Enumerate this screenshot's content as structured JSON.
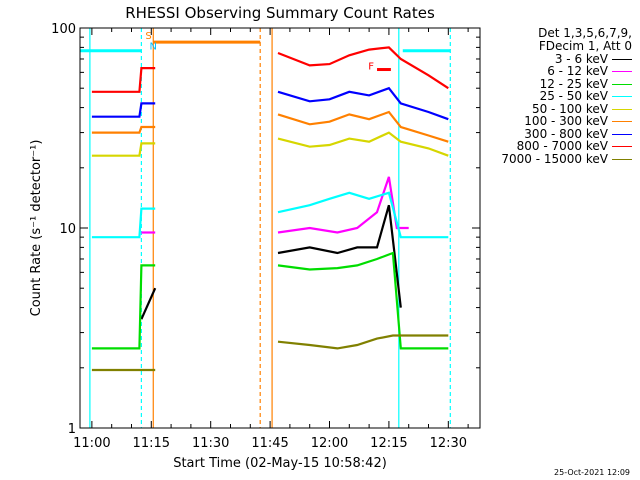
{
  "chart_data": {
    "type": "line",
    "title": "RHESSI Observing Summary Count Rates",
    "xlabel": "Start Time (02-May-15 10:58:42)",
    "ylabel": "Count Rate (s⁻¹ detector⁻¹)",
    "y_scale": "log",
    "ylim": [
      1,
      100
    ],
    "y_ticks": [
      "1",
      "10",
      "100"
    ],
    "xlim_minutes": [
      -3,
      98
    ],
    "x_ticks": [
      {
        "label": "11:00",
        "m": 0
      },
      {
        "label": "11:15",
        "m": 15
      },
      {
        "label": "11:30",
        "m": 30
      },
      {
        "label": "11:45",
        "m": 45
      },
      {
        "label": "12:00",
        "m": 60
      },
      {
        "label": "12:15",
        "m": 75
      },
      {
        "label": "12:30",
        "m": 90
      }
    ],
    "legend_header": [
      "Det 1,3,5,6,7,9,",
      "FDecim 1, Att 0"
    ],
    "series": [
      {
        "name": "3 - 6 keV",
        "color": "#000000",
        "x": [
          12.5,
          16,
          47,
          55,
          62,
          67,
          72,
          75,
          78
        ],
        "y": [
          3.5,
          5,
          7.5,
          8,
          7.5,
          8,
          8,
          13,
          4
        ]
      },
      {
        "name": "6 - 12 keV",
        "color": "#ff00ff",
        "x": [
          12.5,
          16,
          47,
          55,
          62,
          67,
          72,
          75,
          77,
          80
        ],
        "y": [
          9.5,
          9.5,
          9.5,
          10,
          9.5,
          10,
          12,
          18,
          10,
          10
        ]
      },
      {
        "name": "12 - 25 keV",
        "color": "#00dd00",
        "x": [
          0,
          12,
          12.5,
          16,
          47,
          55,
          62,
          67,
          72,
          76,
          78,
          85,
          90
        ],
        "y": [
          2.5,
          2.5,
          6.5,
          6.5,
          6.5,
          6.2,
          6.3,
          6.5,
          7,
          7.5,
          2.5,
          2.5,
          2.5
        ]
      },
      {
        "name": "25 - 50 keV",
        "color": "#00ffff",
        "x": [
          0,
          12,
          12.5,
          16,
          47,
          55,
          60,
          65,
          70,
          75,
          78,
          85,
          90
        ],
        "y": [
          9,
          9,
          12.5,
          12.5,
          12,
          13,
          14,
          15,
          14,
          15,
          9,
          9,
          9
        ]
      },
      {
        "name": "50 - 100 keV",
        "color": "#d6d600",
        "x": [
          0,
          12,
          12.5,
          16,
          47,
          55,
          60,
          65,
          70,
          75,
          78,
          85,
          90
        ],
        "y": [
          23,
          23,
          26.5,
          26.5,
          28,
          25.5,
          26,
          28,
          27,
          30,
          27,
          25,
          23
        ]
      },
      {
        "name": "100 - 300 keV",
        "color": "#ff8000",
        "x": [
          0,
          12,
          12.5,
          16,
          47,
          55,
          60,
          65,
          70,
          75,
          78,
          85,
          90
        ],
        "y": [
          30,
          30,
          32,
          32,
          37,
          33,
          34,
          37,
          35,
          38,
          32,
          29,
          27
        ]
      },
      {
        "name": "300 - 800 keV",
        "color": "#0000ff",
        "x": [
          0,
          12,
          12.5,
          16,
          47,
          55,
          60,
          65,
          70,
          75,
          78,
          85,
          90
        ],
        "y": [
          36,
          36,
          42,
          42,
          48,
          43,
          44,
          48,
          46,
          50,
          42,
          38,
          35
        ]
      },
      {
        "name": "800 - 7000 keV",
        "color": "#ff0000",
        "x": [
          0,
          12,
          12.5,
          16,
          47,
          55,
          60,
          65,
          70,
          75,
          78,
          85,
          90
        ],
        "y": [
          48,
          48,
          63,
          63,
          75,
          65,
          66,
          73,
          78,
          80,
          70,
          58,
          50
        ]
      },
      {
        "name": "7000 - 15000 keV",
        "color": "#808000",
        "x": [
          0,
          12,
          16,
          47,
          55,
          62,
          67,
          72,
          76,
          78,
          85,
          90
        ],
        "y": [
          1.95,
          1.95,
          1.95,
          2.7,
          2.6,
          2.5,
          2.6,
          2.8,
          2.9,
          2.9,
          2.9,
          2.9
        ]
      }
    ],
    "vertical_markers": [
      {
        "m": -0.5,
        "color": "#00ffff",
        "style": "solid"
      },
      {
        "m": 12.5,
        "color": "#00ffff",
        "style": "dashed"
      },
      {
        "m": 15.5,
        "color": "#ff8000",
        "style": "solid"
      },
      {
        "m": 42.5,
        "color": "#ff8000",
        "style": "dashed"
      },
      {
        "m": 45.5,
        "color": "#ff8000",
        "style": "solid"
      },
      {
        "m": 77.5,
        "color": "#00ffff",
        "style": "solid"
      },
      {
        "m": 90.5,
        "color": "#00ffff",
        "style": "dashed"
      }
    ],
    "annotation_bars": [
      {
        "x0": -3,
        "x1": 12.5,
        "color": "#00ffff",
        "y": 77
      },
      {
        "x0": 15.5,
        "x1": 42.5,
        "color": "#ff8000",
        "y": 85
      },
      {
        "x0": 78.5,
        "x1": 90.5,
        "color": "#00ffff",
        "y": 77
      }
    ],
    "annotation_labels": [
      {
        "text": "S",
        "m": 14.3,
        "y": 88,
        "color": "#ff8000"
      },
      {
        "text": "N",
        "m": 15.5,
        "y": 78,
        "color": "#00bfff"
      },
      {
        "text": "F",
        "m": 70.5,
        "y": 62,
        "color": "#ff0000"
      }
    ],
    "flare_bar": {
      "x0": 72,
      "x1": 75.5,
      "y": 62,
      "color": "#ff0000"
    },
    "timestamp": "25-Oct-2021 12:09"
  }
}
